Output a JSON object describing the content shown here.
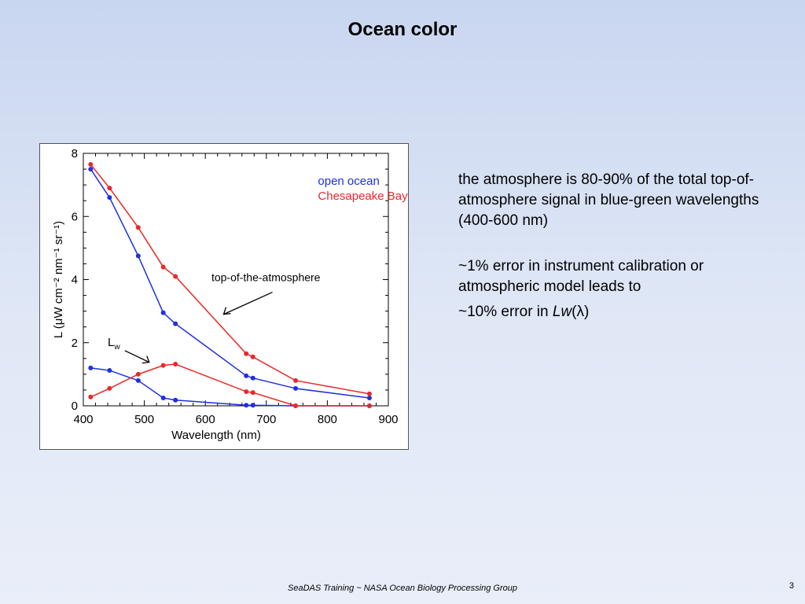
{
  "slide": {
    "title": "Ocean color",
    "footer": "SeaDAS Training ~ NASA Ocean Biology Processing Group",
    "page_number": "3"
  },
  "notes": {
    "paragraph1": "the atmosphere is 80-90% of the total top-of-atmosphere signal in blue-green wavelengths (400-600 nm)",
    "paragraph2": "~1% error in instrument calibration or atmospheric model leads to",
    "paragraph3_prefix": "~10% error in ",
    "paragraph3_italic": "Lw",
    "paragraph3_suffix": "(λ)"
  },
  "chart_data": {
    "type": "line",
    "xlabel": "Wavelength (nm)",
    "ylabel": "L (μW cm⁻² nm⁻¹ sr⁻¹)",
    "xlim": [
      400,
      900
    ],
    "ylim": [
      0,
      8
    ],
    "xticks": [
      400,
      500,
      600,
      700,
      800,
      900
    ],
    "yticks": [
      0,
      2,
      4,
      6,
      8
    ],
    "grid": false,
    "legend_position": "top-right",
    "legend": [
      "open ocean",
      "Chesapeake Bay"
    ],
    "annotations": [
      "top-of-the-atmosphere",
      "Lw"
    ],
    "colors": {
      "open_ocean": "#1f2fe0",
      "chesapeake_bay": "#e8292b"
    },
    "x": [
      412,
      443,
      490,
      531,
      551,
      667,
      678,
      748,
      869
    ],
    "series": [
      {
        "name": "open ocean",
        "group": "top-of-the-atmosphere",
        "values": [
          7.5,
          6.6,
          4.75,
          2.95,
          2.6,
          0.95,
          0.88,
          0.55,
          0.25
        ]
      },
      {
        "name": "Chesapeake Bay",
        "group": "top-of-the-atmosphere",
        "values": [
          7.65,
          6.9,
          5.65,
          4.4,
          4.1,
          1.65,
          1.55,
          0.8,
          0.38
        ]
      },
      {
        "name": "open ocean",
        "group": "Lw",
        "values": [
          1.2,
          1.12,
          0.8,
          0.25,
          0.18,
          0.02,
          0.02,
          0.0,
          0.0
        ]
      },
      {
        "name": "Chesapeake Bay",
        "group": "Lw",
        "values": [
          0.28,
          0.55,
          1.0,
          1.28,
          1.32,
          0.45,
          0.42,
          0.0,
          0.0
        ]
      }
    ]
  }
}
